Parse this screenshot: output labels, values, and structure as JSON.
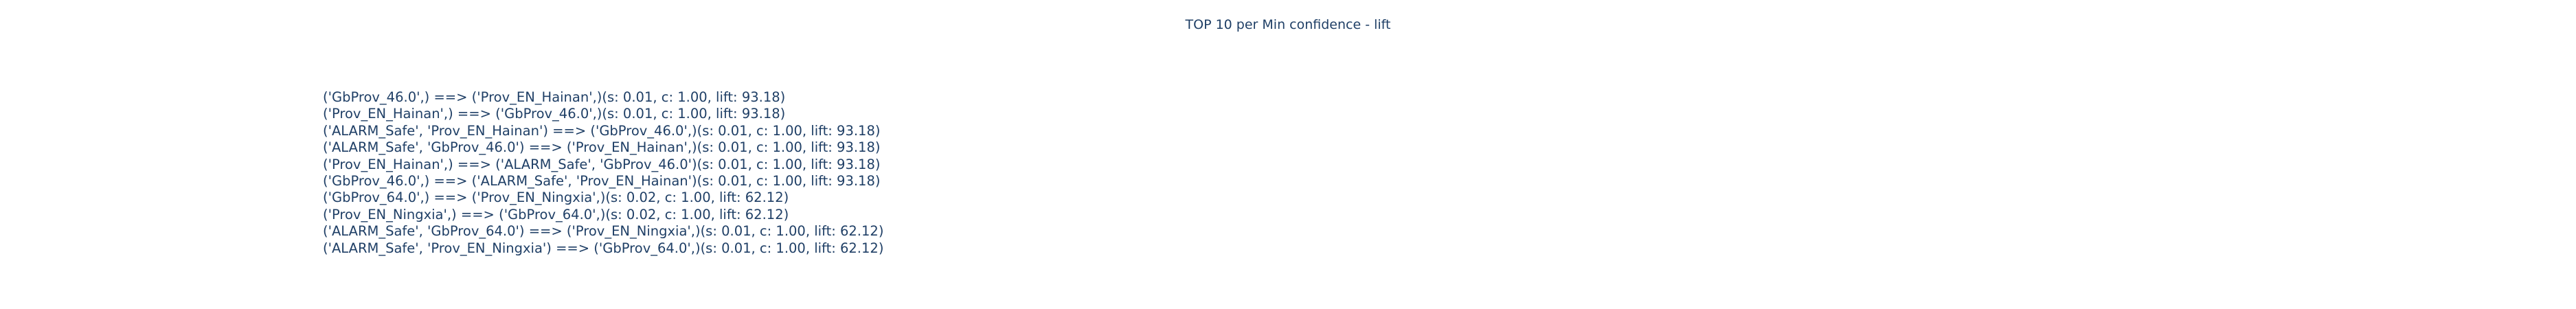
{
  "chart_data": {
    "type": "table",
    "title": "TOP 10 per Min confidence - lift",
    "rules": [
      "('GbProv_46.0',) ==> ('Prov_EN_Hainan',)(s: 0.01, c: 1.00, lift: 93.18)",
      "('Prov_EN_Hainan',) ==> ('GbProv_46.0',)(s: 0.01, c: 1.00, lift: 93.18)",
      "('ALARM_Safe', 'Prov_EN_Hainan') ==> ('GbProv_46.0',)(s: 0.01, c: 1.00, lift: 93.18)",
      "('ALARM_Safe', 'GbProv_46.0') ==> ('Prov_EN_Hainan',)(s: 0.01, c: 1.00, lift: 93.18)",
      "('Prov_EN_Hainan',) ==> ('ALARM_Safe', 'GbProv_46.0')(s: 0.01, c: 1.00, lift: 93.18)",
      "('GbProv_46.0',) ==> ('ALARM_Safe', 'Prov_EN_Hainan')(s: 0.01, c: 1.00, lift: 93.18)",
      "('GbProv_64.0',) ==> ('Prov_EN_Ningxia',)(s: 0.02, c: 1.00, lift: 62.12)",
      "('Prov_EN_Ningxia',) ==> ('GbProv_64.0',)(s: 0.02, c: 1.00, lift: 62.12)",
      "('ALARM_Safe', 'GbProv_64.0') ==> ('Prov_EN_Ningxia',)(s: 0.01, c: 1.00, lift: 62.12)",
      "('ALARM_Safe', 'Prov_EN_Ningxia') ==> ('GbProv_64.0',)(s: 0.01, c: 1.00, lift: 62.12)"
    ]
  },
  "colors": {
    "text": "#1f3f66",
    "background": "#ffffff"
  }
}
